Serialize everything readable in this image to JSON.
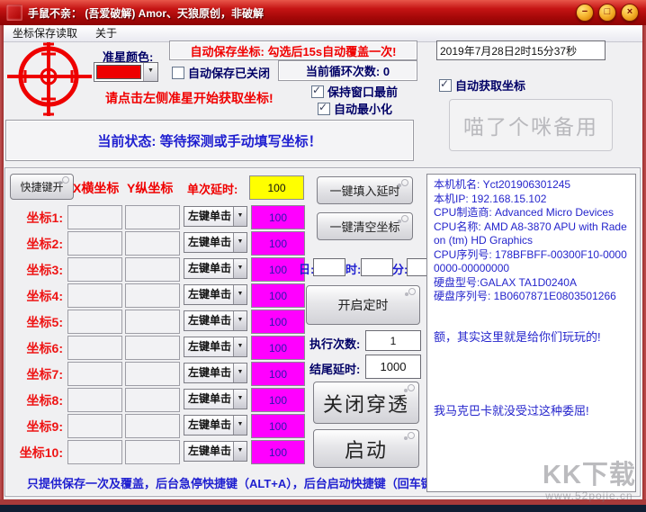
{
  "window": {
    "title": "手鼠不亲： (吾爱破解) Amor、天狼原创，非破解",
    "minimize": "−",
    "maximize": "□",
    "close": "×"
  },
  "menu": {
    "items": [
      {
        "label": "坐标保存读取"
      },
      {
        "label": "关于"
      }
    ]
  },
  "top": {
    "crosshair_color_label": "准星颜色:",
    "prompt": "请点击左侧准星开始获取坐标!",
    "autosave_banner": "自动保存坐标: 勾选后15s自动覆盖一次!",
    "autosave_label": "自动保存已关闭",
    "loop_count": "当前循环次数: 0",
    "keep_front_label": "保持窗口最前",
    "auto_minimize_label": "自动最小化",
    "datetime": "2019年7月28日2时15分37秒",
    "auto_get_label": "自动获取坐标",
    "backup_button": "喵了个咪备用",
    "status": "当前状态: 等待探测或手动填写坐标！"
  },
  "checkbox_states": {
    "autosave": false,
    "keep_front": true,
    "auto_minimize": true,
    "auto_get": true
  },
  "coords": {
    "hotkey_button": "快捷键开",
    "x_header": "X横坐标",
    "y_header": "Y纵坐标",
    "delay_label": "单次延时:",
    "delay_value": "100",
    "rows": [
      {
        "label": "坐标1:",
        "x": "",
        "y": "",
        "action": "左键单击",
        "delay": "100"
      },
      {
        "label": "坐标2:",
        "x": "",
        "y": "",
        "action": "左键单击",
        "delay": "100"
      },
      {
        "label": "坐标3:",
        "x": "",
        "y": "",
        "action": "左键单击",
        "delay": "100"
      },
      {
        "label": "坐标4:",
        "x": "",
        "y": "",
        "action": "左键单击",
        "delay": "100"
      },
      {
        "label": "坐标5:",
        "x": "",
        "y": "",
        "action": "左键单击",
        "delay": "100"
      },
      {
        "label": "坐标6:",
        "x": "",
        "y": "",
        "action": "左键单击",
        "delay": "100"
      },
      {
        "label": "坐标7:",
        "x": "",
        "y": "",
        "action": "左键单击",
        "delay": "100"
      },
      {
        "label": "坐标8:",
        "x": "",
        "y": "",
        "action": "左键单击",
        "delay": "100"
      },
      {
        "label": "坐标9:",
        "x": "",
        "y": "",
        "action": "左键单击",
        "delay": "100"
      },
      {
        "label": "坐标10:",
        "x": "",
        "y": "",
        "action": "左键单击",
        "delay": "100"
      }
    ],
    "footer_note": "只提供保存一次及覆盖，后台急停快捷键（ALT+A），后台启动快捷键（回车键）"
  },
  "actions": {
    "fill_delay": "一键填入延时",
    "clear_coords": "一键清空坐标",
    "day_label": "日:",
    "hour_label": "时:",
    "minute_label": "分:",
    "day_value": "",
    "hour_value": "",
    "minute_value": "",
    "start_timer": "开启定时",
    "exec_count_label": "执行次数:",
    "exec_count_value": "1",
    "end_delay_label": "结尾延时:",
    "end_delay_value": "1000",
    "toggle_penetrate": "关闭穿透",
    "start": "启动"
  },
  "info": {
    "system_text": "本机机名: Yct201906301245\n本机IP: 192.168.15.102\nCPU制造商: Advanced Micro Devices\nCPU名称: AMD A8-3870 APU with Radeon (tm) HD Graphics\nCPU序列号: 178BFBFF-00300F10-00000000-00000000\n硬盘型号:GALAX TA1D0240A\n硬盘序列号: 1B0607871E0803501266",
    "joke1": "额，其实这里就是给你们玩玩的!",
    "joke2": "我马克巴卡就没受过这种委屈!"
  },
  "watermark": {
    "line1": "KK下载",
    "line2": "www.52pojie.cn"
  },
  "colors": {
    "titlebar_red": "#c51414",
    "accent_magenta": "#ff00ff",
    "accent_yellow": "#ffff00",
    "label_red": "#ee1414",
    "text_blue": "#2525cc",
    "text_navy": "#000066",
    "crosshair_red": "#ee0000"
  }
}
